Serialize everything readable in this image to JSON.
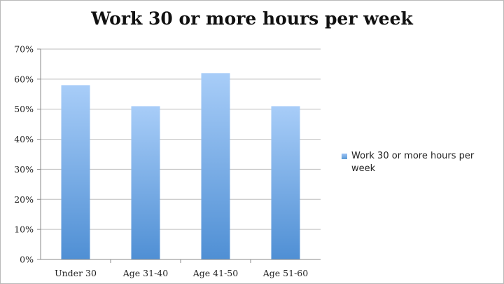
{
  "chart_data": {
    "type": "bar",
    "title": "Work 30 or more hours per week",
    "categories": [
      "Under 30",
      "Age 31-40",
      "Age 41-50",
      "Age 51-60"
    ],
    "series": [
      {
        "name": "Work 30 or more hours per week",
        "values": [
          58,
          51,
          62,
          51
        ]
      }
    ],
    "ylim": [
      0,
      70
    ],
    "yticks": [
      "0%",
      "10%",
      "20%",
      "30%",
      "40%",
      "50%",
      "60%",
      "70%"
    ],
    "grid": true,
    "legend": "right",
    "colors": {
      "bar_top": "#a8cdf8",
      "bar_bottom": "#4f8fd4",
      "grid": "#bdbdbd"
    }
  }
}
